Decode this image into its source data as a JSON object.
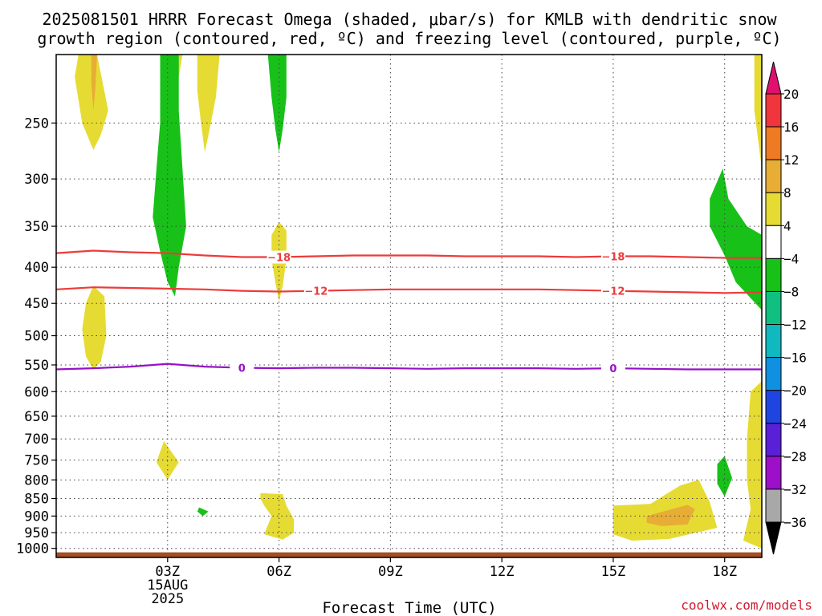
{
  "title": {
    "line1": "2025081501 HRRR Forecast Omega (shaded, μbar/s) for KMLB with dendritic snow",
    "line2": "growth region (contoured, red, ºC) and freezing level (contoured, purple, ºC)"
  },
  "credit": "coolwx.com/models",
  "chart_data": {
    "type": "heatmap",
    "title": "2025081501 HRRR Forecast Omega (shaded, μbar/s) for KMLB with dendritic snow growth region (contoured, red, ºC) and freezing level (contoured, purple, ºC)",
    "xlabel": "Forecast Time (UTC)",
    "ylabel": "",
    "x_unit": "forecast hour",
    "xlim": [
      0,
      19
    ],
    "ylim_hpa": [
      1030,
      200
    ],
    "y_scale": "log (pressure)",
    "grid": true,
    "x_ticks": [
      {
        "hour": 3,
        "label": "03Z",
        "sublabel": "15AUG",
        "sublabel2": "2025"
      },
      {
        "hour": 6,
        "label": "06Z"
      },
      {
        "hour": 9,
        "label": "09Z"
      },
      {
        "hour": 12,
        "label": "12Z"
      },
      {
        "hour": 15,
        "label": "15Z"
      },
      {
        "hour": 18,
        "label": "18Z"
      }
    ],
    "y_ticks": [
      250,
      300,
      350,
      400,
      450,
      500,
      550,
      600,
      650,
      700,
      750,
      800,
      850,
      900,
      950,
      1000
    ],
    "colorbar": {
      "levels": [
        "20",
        "16",
        "12",
        "8",
        "4",
        "−4",
        "−8",
        "−12",
        "−16",
        "−20",
        "−24",
        "−28",
        "−32",
        "−36"
      ],
      "colors": [
        "#e0106e",
        "#f0353c",
        "#ee7a23",
        "#e7ad35",
        "#e6db32",
        "#ffffff",
        "#18c118",
        "#10c081",
        "#10b8c0",
        "#1090e0",
        "#1f45e0",
        "#5a20d8",
        "#9b10c8",
        "#a8a8a8",
        "#000000"
      ]
    },
    "contours": [
      {
        "name": "-18",
        "color": "#ec3b3b",
        "points": [
          [
            0,
            382
          ],
          [
            1,
            379
          ],
          [
            2,
            381
          ],
          [
            3,
            382
          ],
          [
            4,
            385
          ],
          [
            5,
            387
          ],
          [
            6,
            387
          ],
          [
            7,
            386
          ],
          [
            8,
            385
          ],
          [
            9,
            385
          ],
          [
            10,
            385
          ],
          [
            11,
            386
          ],
          [
            12,
            386
          ],
          [
            13,
            386
          ],
          [
            14,
            387
          ],
          [
            15,
            386
          ],
          [
            16,
            386
          ],
          [
            17,
            387
          ],
          [
            18,
            388
          ],
          [
            19,
            388
          ]
        ],
        "labels": [
          [
            6,
            387
          ],
          [
            15,
            386
          ]
        ]
      },
      {
        "name": "-12",
        "color": "#ec3b3b",
        "points": [
          [
            0,
            430
          ],
          [
            1,
            427
          ],
          [
            2,
            428
          ],
          [
            3,
            429
          ],
          [
            4,
            430
          ],
          [
            5,
            432
          ],
          [
            6,
            433
          ],
          [
            7,
            432
          ],
          [
            8,
            431
          ],
          [
            9,
            430
          ],
          [
            10,
            430
          ],
          [
            11,
            430
          ],
          [
            12,
            430
          ],
          [
            13,
            430
          ],
          [
            14,
            431
          ],
          [
            15,
            432
          ],
          [
            16,
            433
          ],
          [
            17,
            434
          ],
          [
            18,
            435
          ],
          [
            19,
            434
          ]
        ],
        "labels": [
          [
            7,
            432
          ],
          [
            15,
            432
          ]
        ]
      },
      {
        "name": "0",
        "color": "#9512c6",
        "points": [
          [
            0,
            558
          ],
          [
            1,
            556
          ],
          [
            2,
            553
          ],
          [
            3,
            548
          ],
          [
            4,
            553
          ],
          [
            5,
            555
          ],
          [
            6,
            556
          ],
          [
            7,
            555
          ],
          [
            8,
            555
          ],
          [
            9,
            556
          ],
          [
            10,
            557
          ],
          [
            11,
            556
          ],
          [
            12,
            556
          ],
          [
            13,
            556
          ],
          [
            14,
            557
          ],
          [
            15,
            556
          ],
          [
            16,
            557
          ],
          [
            17,
            558
          ],
          [
            18,
            558
          ],
          [
            19,
            558
          ]
        ],
        "labels": [
          [
            5,
            555
          ],
          [
            15,
            556
          ]
        ]
      }
    ],
    "omega_regions": [
      {
        "level": "4 to 8",
        "color": "#e6db32",
        "points": [
          [
            0.6,
            200
          ],
          [
            1.1,
            200
          ],
          [
            1.4,
            240
          ],
          [
            1.2,
            260
          ],
          [
            1.0,
            273
          ],
          [
            0.7,
            250
          ],
          [
            0.5,
            215
          ]
        ]
      },
      {
        "level": "8 to 12",
        "color": "#e7ad35",
        "points": [
          [
            0.95,
            200
          ],
          [
            1.1,
            200
          ],
          [
            1.05,
            225
          ],
          [
            1.0,
            240
          ],
          [
            0.95,
            220
          ]
        ]
      },
      {
        "level": "4 to 8",
        "color": "#e6db32",
        "points": [
          [
            2.8,
            200
          ],
          [
            3.4,
            200
          ],
          [
            3.3,
            215
          ],
          [
            3.2,
            235
          ],
          [
            3.0,
            230
          ],
          [
            2.9,
            215
          ]
        ]
      },
      {
        "level": "4 to 8",
        "color": "#e6db32",
        "points": [
          [
            3.8,
            200
          ],
          [
            4.4,
            200
          ],
          [
            4.3,
            230
          ],
          [
            4.1,
            260
          ],
          [
            4.0,
            275
          ],
          [
            3.9,
            250
          ],
          [
            3.8,
            225
          ]
        ]
      },
      {
        "level": "-8 to -4",
        "color": "#18c118",
        "points": [
          [
            2.8,
            200
          ],
          [
            3.3,
            200
          ],
          [
            3.3,
            240
          ],
          [
            3.4,
            290
          ],
          [
            3.5,
            350
          ],
          [
            3.3,
            400
          ],
          [
            3.2,
            440
          ],
          [
            3.0,
            420
          ],
          [
            2.8,
            380
          ],
          [
            2.6,
            340
          ],
          [
            2.7,
            290
          ],
          [
            2.8,
            250
          ]
        ]
      },
      {
        "level": "-8 to -4",
        "color": "#18c118",
        "points": [
          [
            5.7,
            200
          ],
          [
            6.2,
            200
          ],
          [
            6.2,
            230
          ],
          [
            6.1,
            255
          ],
          [
            6.0,
            275
          ],
          [
            5.9,
            255
          ],
          [
            5.8,
            230
          ]
        ]
      },
      {
        "level": "4 to 8",
        "color": "#e6db32",
        "points": [
          [
            6.0,
            345
          ],
          [
            6.2,
            355
          ],
          [
            6.2,
            390
          ],
          [
            6.1,
            425
          ],
          [
            6.0,
            447
          ],
          [
            5.9,
            420
          ],
          [
            5.8,
            390
          ],
          [
            5.8,
            360
          ]
        ]
      },
      {
        "level": "4 to 8",
        "color": "#e6db32",
        "points": [
          [
            1.0,
            425
          ],
          [
            1.3,
            440
          ],
          [
            1.35,
            500
          ],
          [
            1.2,
            545
          ],
          [
            1.0,
            558
          ],
          [
            0.8,
            535
          ],
          [
            0.7,
            490
          ],
          [
            0.8,
            450
          ]
        ]
      },
      {
        "level": "4 to 8",
        "color": "#e6db32",
        "points": [
          [
            2.9,
            705
          ],
          [
            3.3,
            755
          ],
          [
            3.0,
            800
          ],
          [
            2.7,
            755
          ]
        ]
      },
      {
        "level": "-8 to -4",
        "color": "#18c118",
        "points": [
          [
            3.85,
            875
          ],
          [
            4.1,
            887
          ],
          [
            3.95,
            900
          ],
          [
            3.8,
            887
          ]
        ]
      },
      {
        "level": "4 to 8",
        "color": "#e6db32",
        "points": [
          [
            5.5,
            835
          ],
          [
            6.1,
            838
          ],
          [
            6.2,
            870
          ],
          [
            6.4,
            910
          ],
          [
            6.4,
            950
          ],
          [
            6.1,
            972
          ],
          [
            5.6,
            955
          ],
          [
            5.8,
            900
          ],
          [
            5.6,
            870
          ],
          [
            5.5,
            850
          ]
        ]
      },
      {
        "level": "4 to 8",
        "color": "#e6db32",
        "points": [
          [
            15.0,
            870
          ],
          [
            16.0,
            865
          ],
          [
            16.8,
            815
          ],
          [
            17.3,
            800
          ],
          [
            17.6,
            860
          ],
          [
            17.8,
            935
          ],
          [
            16.5,
            970
          ],
          [
            15.5,
            975
          ],
          [
            15.0,
            955
          ]
        ]
      },
      {
        "level": "8 to 12",
        "color": "#e7ad35",
        "points": [
          [
            15.9,
            900
          ],
          [
            17.0,
            868
          ],
          [
            17.2,
            880
          ],
          [
            17.0,
            925
          ],
          [
            16.3,
            930
          ],
          [
            15.9,
            920
          ]
        ]
      },
      {
        "level": "-8 to -4",
        "color": "#18c118",
        "points": [
          [
            17.95,
            290
          ],
          [
            18.1,
            320
          ],
          [
            18.6,
            350
          ],
          [
            19.0,
            360
          ],
          [
            19.0,
            460
          ],
          [
            18.3,
            420
          ],
          [
            18.0,
            385
          ],
          [
            17.6,
            350
          ],
          [
            17.6,
            320
          ]
        ]
      },
      {
        "level": "-8 to -4",
        "color": "#18c118",
        "points": [
          [
            17.8,
            760
          ],
          [
            18.0,
            740
          ],
          [
            18.2,
            795
          ],
          [
            18.0,
            845
          ],
          [
            17.8,
            810
          ]
        ]
      },
      {
        "level": "4 to 8",
        "color": "#e6db32",
        "points": [
          [
            18.8,
            200
          ],
          [
            19.0,
            200
          ],
          [
            19.0,
            290
          ],
          [
            18.8,
            240
          ]
        ]
      },
      {
        "level": "4 to 8",
        "color": "#e6db32",
        "points": [
          [
            19.0,
            580
          ],
          [
            19.0,
            1000
          ],
          [
            18.5,
            975
          ],
          [
            18.7,
            880
          ],
          [
            18.6,
            800
          ],
          [
            18.6,
            700
          ],
          [
            18.7,
            600
          ]
        ]
      }
    ],
    "terrain": {
      "color": "#a34e23",
      "surface_hpa": 1013
    }
  }
}
